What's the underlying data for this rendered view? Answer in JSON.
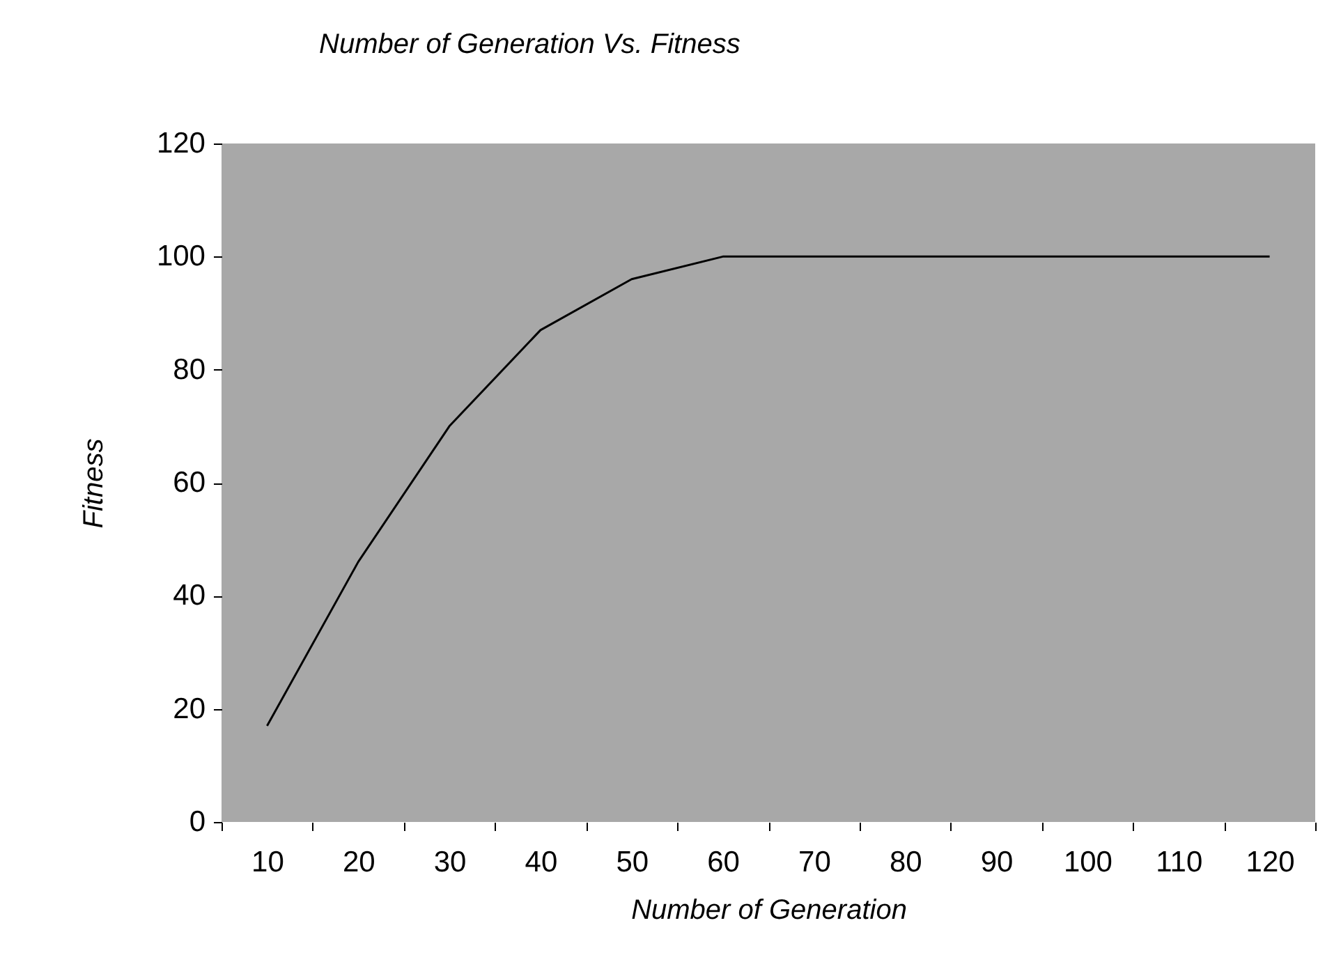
{
  "chart_data": {
    "type": "line",
    "title": "Number of Generation Vs. Fitness",
    "xlabel": "Number of Generation",
    "ylabel": "Fitness",
    "categories": [
      "10",
      "20",
      "30",
      "40",
      "50",
      "60",
      "70",
      "80",
      "90",
      "100",
      "110",
      "120"
    ],
    "series": [
      {
        "color": "#000000",
        "values": [
          17,
          46,
          70,
          87,
          96,
          100,
          100,
          100,
          100,
          100,
          100,
          100
        ]
      }
    ],
    "ylim": [
      0,
      120
    ],
    "yticks": [
      0,
      20,
      40,
      60,
      80,
      100,
      120
    ],
    "grid": false,
    "marker": "none",
    "line_style": "solid"
  }
}
